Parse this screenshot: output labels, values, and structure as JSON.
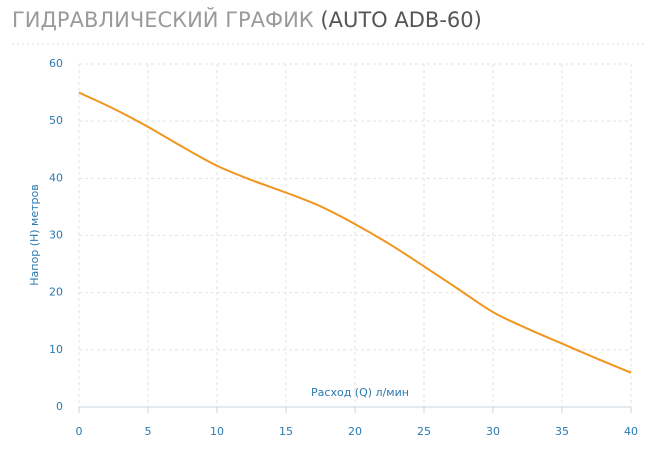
{
  "chart_data": {
    "type": "line",
    "title": "ГИДРАВЛИЧЕСКИЙ ГРАФИК",
    "subtitle": "(AUTO ADB-60)",
    "x_label": "Расход (Q) л/мин",
    "y_label": "Напор (H) метров",
    "x": [
      0,
      2.5,
      5,
      7.5,
      10,
      12.5,
      15,
      17.5,
      20,
      22.5,
      25,
      27.5,
      30,
      32.5,
      35,
      37.5,
      40
    ],
    "series": [
      {
        "name": "AUTO ADB-60",
        "color": "#f0961e",
        "values": [
          55,
          52.2,
          49,
          45.5,
          42.2,
          39.7,
          37.5,
          35.1,
          32,
          28.5,
          24.6,
          20.6,
          16.6,
          13.7,
          11.1,
          8.5,
          6
        ]
      }
    ],
    "xlim": [
      0,
      40
    ],
    "xticks": [
      0,
      5,
      10,
      15,
      20,
      25,
      30,
      35,
      40
    ],
    "ylim": [
      0,
      60
    ],
    "yticks": [
      0,
      10,
      20,
      30,
      40,
      50,
      60
    ],
    "grid": true
  }
}
